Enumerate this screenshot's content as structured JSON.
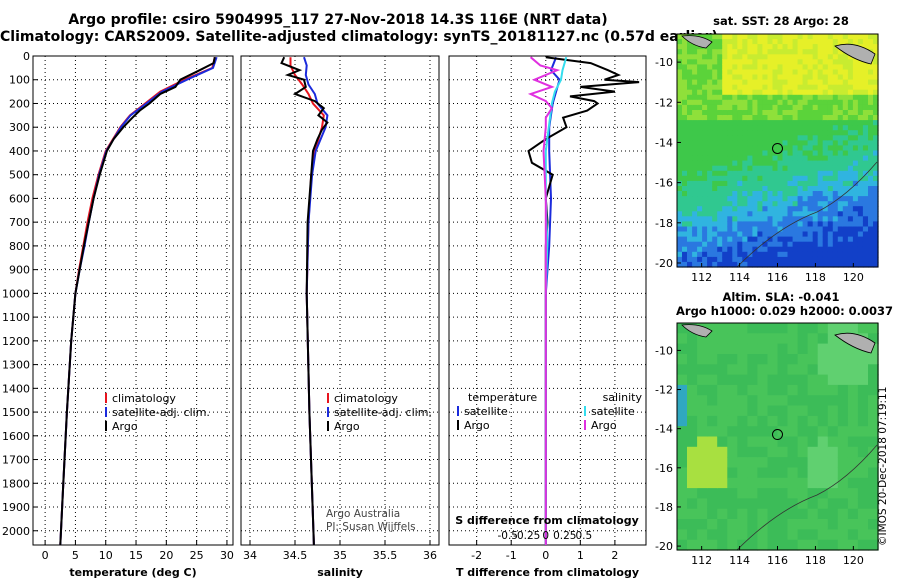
{
  "header": {
    "title_line1": "Argo profile: csiro 5904995_117 27-Nov-2018 14.3S 116E (NRT data)",
    "title_line2": "Climatology: CARS2009. Satellite-adjusted climatology: synTS_20181127.nc (0.57d earlier)"
  },
  "map_sst": {
    "title": "sat. SST: 28 Argo: 28"
  },
  "map_sla": {
    "title_line1": "Altim. SLA: -0.041",
    "title_line2": "Argo h1000: 0.029 h2000: 0.0037"
  },
  "credit": "©IMOS 20-Dec-2018 07:19:11",
  "colors": {
    "climatology": "#e8141e",
    "satellite": "#1a2adc",
    "argo": "#000000",
    "sat_salinity": "#33ddee",
    "argo_salinity": "#e030e0"
  },
  "chart_data": [
    {
      "type": "line",
      "xlabel": "temperature (deg C)",
      "xticks": [
        0,
        5,
        10,
        15,
        20,
        25,
        30
      ],
      "xlim": [
        -2,
        31
      ],
      "yticks": [
        0,
        100,
        200,
        300,
        400,
        500,
        600,
        700,
        800,
        900,
        1000,
        1100,
        1200,
        1300,
        1400,
        1500,
        1600,
        1700,
        1800,
        1900,
        2000
      ],
      "ylim": [
        2060,
        0
      ],
      "legend": [
        "climatology",
        "satellite-adj. clim.",
        "Argo"
      ],
      "series": [
        {
          "name": "climatology",
          "depth": [
            5,
            50,
            100,
            150,
            200,
            250,
            300,
            400,
            500,
            600,
            700,
            800,
            900,
            1000,
            1200,
            1500,
            1800,
            2060
          ],
          "values": [
            28.0,
            27.6,
            23.0,
            19.0,
            16.5,
            14.0,
            12.4,
            10.0,
            8.8,
            7.8,
            7.0,
            6.3,
            5.6,
            5.0,
            4.3,
            3.6,
            3.0,
            2.5
          ]
        },
        {
          "name": "satellite-adj. clim.",
          "depth": [
            5,
            50,
            100,
            150,
            200,
            250,
            300,
            400,
            500,
            600,
            700,
            800,
            900,
            1000,
            1200,
            1500,
            1800,
            2060
          ],
          "values": [
            28.3,
            27.7,
            23.4,
            19.3,
            16.7,
            14.1,
            12.5,
            10.1,
            8.9,
            8.0,
            7.2,
            6.5,
            5.7,
            5.0,
            4.3,
            3.6,
            3.0,
            2.5
          ]
        },
        {
          "name": "Argo",
          "depth": [
            5,
            30,
            60,
            100,
            130,
            160,
            200,
            230,
            260,
            300,
            350,
            400,
            500,
            600,
            800,
            1000,
            1200,
            1500,
            1800,
            2060
          ],
          "values": [
            28.0,
            27.8,
            25.5,
            22.3,
            21.5,
            19.0,
            17.2,
            15.6,
            14.4,
            12.9,
            11.3,
            10.2,
            9.0,
            8.0,
            6.4,
            5.0,
            4.3,
            3.6,
            3.0,
            2.5
          ]
        }
      ]
    },
    {
      "type": "line",
      "xlabel": "salinity",
      "xticks": [
        34,
        34.5,
        35,
        35.5,
        36
      ],
      "xlim": [
        33.9,
        36.1
      ],
      "ylim": [
        2060,
        0
      ],
      "legend": [
        "climatology",
        "satellite-adj. clim.",
        "Argo"
      ],
      "annotation": [
        "Argo Australia",
        "PI: Susan Wijffels"
      ],
      "series": [
        {
          "name": "climatology",
          "depth": [
            5,
            40,
            80,
            120,
            160,
            200,
            250,
            300,
            400,
            500,
            700,
            1000,
            1500,
            2060
          ],
          "values": [
            34.45,
            34.45,
            34.5,
            34.58,
            34.65,
            34.7,
            34.82,
            34.8,
            34.72,
            34.68,
            34.65,
            34.63,
            34.66,
            34.71
          ]
        },
        {
          "name": "satellite-adj. clim.",
          "depth": [
            5,
            40,
            80,
            120,
            160,
            200,
            250,
            300,
            400,
            500,
            700,
            1000,
            1500,
            2060
          ],
          "values": [
            34.6,
            34.63,
            34.62,
            34.65,
            34.72,
            34.75,
            34.86,
            34.84,
            34.73,
            34.69,
            34.65,
            34.63,
            34.66,
            34.71
          ]
        },
        {
          "name": "Argo",
          "depth": [
            5,
            30,
            60,
            80,
            100,
            130,
            160,
            190,
            220,
            250,
            280,
            310,
            350,
            400,
            500,
            700,
            1000,
            1500,
            2060
          ],
          "values": [
            34.38,
            34.35,
            34.55,
            34.42,
            34.6,
            34.62,
            34.5,
            34.72,
            34.82,
            34.76,
            34.86,
            34.8,
            34.75,
            34.7,
            34.68,
            34.64,
            34.63,
            34.66,
            34.71
          ]
        }
      ]
    },
    {
      "type": "line",
      "xlabel": "T difference from climatology",
      "x2label": "S difference from climatology",
      "xticks": [
        -2,
        -1,
        0,
        1,
        2
      ],
      "x2ticks": [
        -0.5,
        -0.25,
        0,
        0.25,
        0.5
      ],
      "x2ticklabels": [
        "-0.5",
        "-0.25",
        "0",
        "0.25",
        "0.5"
      ],
      "xlim": [
        -2.8,
        2.9
      ],
      "ylim": [
        2060,
        0
      ],
      "legend_left": {
        "title": "temperature",
        "entries": [
          "satellite",
          "Argo"
        ]
      },
      "legend_right": {
        "title": "salinity",
        "entries": [
          "satellite",
          "Argo"
        ]
      },
      "series": [
        {
          "name": "T satellite",
          "depth": [
            5,
            60,
            100,
            150,
            200,
            300,
            400,
            600,
            800,
            1000,
            1500,
            2060
          ],
          "values": [
            0.3,
            0.15,
            0.4,
            0.3,
            0.2,
            0.1,
            0.1,
            0.15,
            0.1,
            0.0,
            0.0,
            0.0
          ]
        },
        {
          "name": "T Argo",
          "depth": [
            5,
            30,
            60,
            80,
            100,
            110,
            130,
            150,
            170,
            190,
            200,
            230,
            260,
            300,
            350,
            400,
            450,
            500,
            600,
            700,
            800,
            1000,
            1500,
            2060
          ],
          "values": [
            0.0,
            1.3,
            1.8,
            2.1,
            1.7,
            2.7,
            1.0,
            2.0,
            0.7,
            1.4,
            1.5,
            1.2,
            0.5,
            0.6,
            0.0,
            -0.5,
            -0.4,
            0.2,
            0.0,
            0.05,
            0.0,
            0.0,
            0.0,
            0.0
          ]
        },
        {
          "name": "S satellite",
          "depth": [
            5,
            60,
            100,
            150,
            200,
            300,
            400,
            600,
            800,
            1000,
            1500,
            2060
          ],
          "values": [
            0.27,
            0.22,
            0.2,
            0.12,
            0.08,
            0.04,
            0.0,
            0.0,
            0.02,
            0.0,
            0.0,
            0.0
          ]
        },
        {
          "name": "S Argo",
          "depth": [
            5,
            40,
            60,
            100,
            130,
            160,
            190,
            220,
            260,
            300,
            400,
            600,
            1000,
            2060
          ],
          "values": [
            -0.2,
            -0.07,
            0.15,
            -0.15,
            0.08,
            -0.2,
            0.0,
            0.08,
            0.0,
            0.0,
            -0.03,
            0.0,
            0.0,
            0.0
          ]
        }
      ]
    },
    {
      "type": "heatmap",
      "title": "sat. SST: 28 Argo: 28",
      "xticks": [
        112,
        114,
        116,
        118,
        120
      ],
      "yticks": [
        -10,
        -12,
        -14,
        -16,
        -18,
        -20
      ],
      "xlim": [
        110.7,
        121.3
      ],
      "ylim": [
        -20.2,
        -8.6
      ],
      "argo_position": [
        116.0,
        -14.3
      ]
    },
    {
      "type": "heatmap",
      "title": "Altim. SLA: -0.041 / Argo h1000: 0.029 h2000: 0.0037",
      "xticks": [
        112,
        114,
        116,
        118,
        120
      ],
      "yticks": [
        -10,
        -12,
        -14,
        -16,
        -18,
        -20
      ],
      "xlim": [
        110.7,
        121.3
      ],
      "ylim": [
        -20.2,
        -8.6
      ],
      "argo_position": [
        116.0,
        -14.3
      ]
    }
  ]
}
